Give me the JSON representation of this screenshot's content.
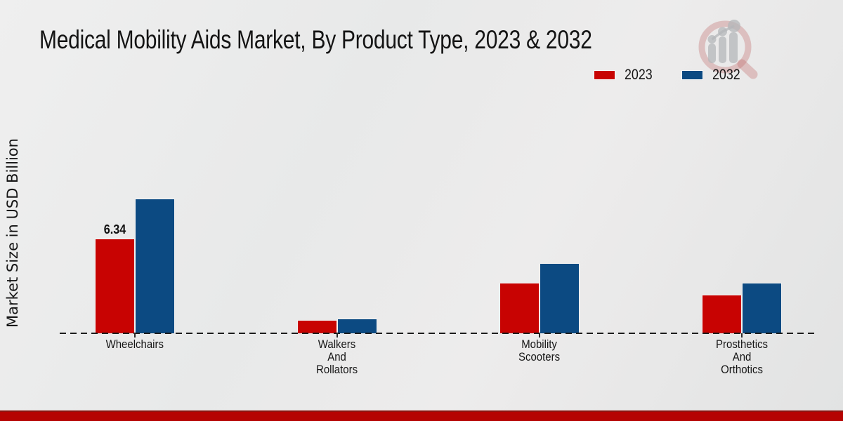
{
  "header": {
    "title": "Medical Mobility Aids Market, By Product Type, 2023 & 2032"
  },
  "y_axis": {
    "label": "Market Size in USD Billion"
  },
  "legend": {
    "items": [
      {
        "label": "2023",
        "color": "#c80302"
      },
      {
        "label": "2032",
        "color": "#0c4a82"
      }
    ]
  },
  "watermark": {
    "icon": "magnifier-bar-chart-logo"
  },
  "footer": {
    "accent_color": "#b50302"
  },
  "chart_data": {
    "type": "bar",
    "title": "Medical Mobility Aids Market, By Product Type, 2023 & 2032",
    "xlabel": "",
    "ylabel": "Market Size in USD Billion",
    "categories": [
      "Wheelchairs",
      "Walkers And Rollators",
      "Mobility Scooters",
      "Prosthetics And Orthotics"
    ],
    "category_label_lines": [
      "Wheelchairs",
      "Walkers\nAnd\nRollators",
      "Mobility\nScooters",
      "Prosthetics\nAnd\nOrthotics"
    ],
    "series": [
      {
        "name": "2023",
        "color": "#c80302",
        "values": [
          6.34,
          0.9,
          3.4,
          2.6
        ],
        "data_labels": [
          "6.34",
          null,
          null,
          null
        ]
      },
      {
        "name": "2032",
        "color": "#0c4a82",
        "values": [
          9.0,
          1.0,
          4.7,
          3.4
        ],
        "data_labels": [
          null,
          null,
          null,
          null
        ]
      }
    ],
    "ylim": [
      0,
      10.5
    ],
    "grid": false,
    "baseline_style": "dashed",
    "legend_position": "top-right",
    "data_label_note": "only Wheelchairs 2023 bar is labeled"
  }
}
